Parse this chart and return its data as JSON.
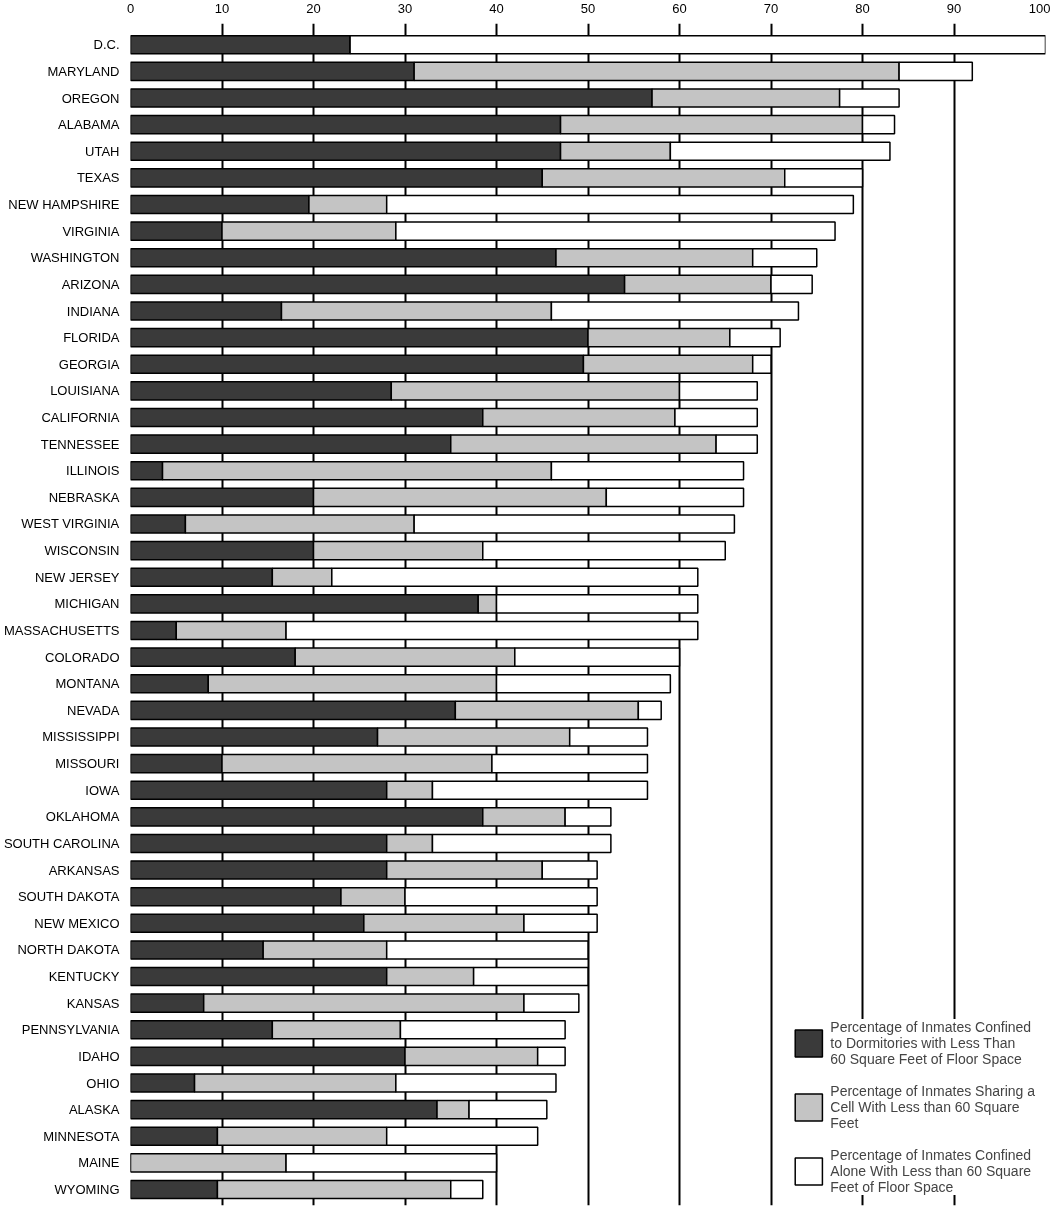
{
  "chart_data": {
    "type": "bar",
    "orientation": "horizontal",
    "stacked": true,
    "categories": [
      "D.C.",
      "MARYLAND",
      "OREGON",
      "ALABAMA",
      "UTAH",
      "TEXAS",
      "NEW HAMPSHIRE",
      "VIRGINIA",
      "WASHINGTON",
      "ARIZONA",
      "INDIANA",
      "FLORIDA",
      "GEORGIA",
      "LOUISIANA",
      "CALIFORNIA",
      "TENNESSEE",
      "ILLINOIS",
      "NEBRASKA",
      "WEST VIRGINIA",
      "WISCONSIN",
      "NEW JERSEY",
      "MICHIGAN",
      "MASSACHUSETTS",
      "COLORADO",
      "MONTANA",
      "NEVADA",
      "MISSISSIPPI",
      "MISSOURI",
      "IOWA",
      "OKLAHOMA",
      "SOUTH CAROLINA",
      "ARKANSAS",
      "SOUTH DAKOTA",
      "NEW MEXICO",
      "NORTH DAKOTA",
      "KENTUCKY",
      "KANSAS",
      "PENNSYLVANIA",
      "IDAHO",
      "OHIO",
      "ALASKA",
      "MINNESOTA",
      "MAINE",
      "WYOMING"
    ],
    "series": [
      {
        "name": "Percentage of Inmates Confined to Dormitories with Less Than 60 Square Feet of Floor Space",
        "color": "#3a3a3a",
        "values": [
          24,
          31,
          57,
          47,
          47,
          45,
          19.5,
          10,
          46.5,
          54,
          16.5,
          50,
          49.5,
          28.5,
          38.5,
          35,
          3.5,
          20,
          6,
          20,
          15.5,
          38,
          5,
          18,
          8.5,
          35.5,
          27,
          10,
          28,
          38.5,
          28,
          28,
          23,
          25.5,
          14.5,
          28,
          8,
          15.5,
          30,
          7,
          33.5,
          9.5,
          0,
          9.5
        ]
      },
      {
        "name": "Percentage of Inmates Sharing a Cell With Less than 60 Square Feet",
        "color": "#c4c4c4",
        "values": [
          0,
          53,
          20.5,
          33,
          12,
          26.5,
          8.5,
          19,
          21.5,
          16,
          29.5,
          15.5,
          18.5,
          31.5,
          21,
          29,
          42.5,
          32,
          25,
          18.5,
          6.5,
          2,
          12,
          24,
          31.5,
          20,
          21,
          29.5,
          5,
          9,
          5,
          17,
          7,
          17.5,
          13.5,
          9.5,
          35,
          14,
          14.5,
          22,
          3.5,
          18.5,
          17,
          25.5
        ]
      },
      {
        "name": "Percentage of Inmates Confined Alone With Less than 60 Square Feet of Floor Space",
        "color": "#ffffff",
        "values": [
          76,
          8,
          6.5,
          3.5,
          24,
          8.5,
          51,
          48,
          7,
          4.5,
          27,
          5.5,
          2,
          8.5,
          9,
          4.5,
          21,
          15,
          35,
          26.5,
          40,
          22,
          45,
          18,
          19,
          2.5,
          8.5,
          17,
          23.5,
          5,
          19.5,
          6,
          21,
          8,
          22,
          12.5,
          6,
          18,
          3,
          17.5,
          8.5,
          16.5,
          23,
          3.5
        ]
      }
    ],
    "xlim": [
      0,
      100
    ],
    "xticks": [
      0,
      10,
      20,
      30,
      40,
      50,
      60,
      70,
      80,
      90,
      100
    ],
    "grid": "x",
    "legend": "bottom right"
  }
}
